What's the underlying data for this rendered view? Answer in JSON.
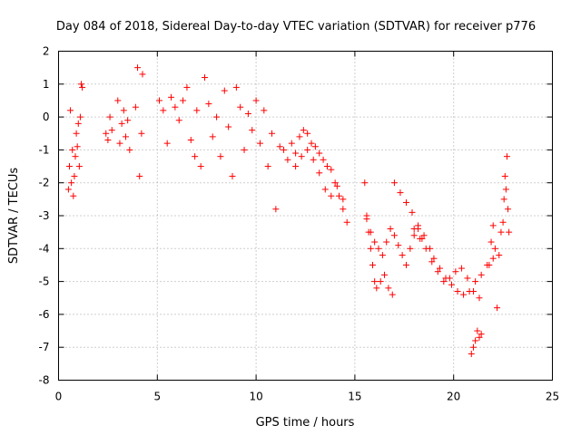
{
  "chart_data": {
    "type": "scatter",
    "title": "Day 084 of 2018, Sidereal Day-to-day VTEC variation (SDTVAR) for receiver p776",
    "xlabel": "GPS time / hours",
    "ylabel": "SDTVAR / TECUs",
    "xlim": [
      0,
      25
    ],
    "ylim": [
      -8,
      2
    ],
    "x_ticks": [
      0,
      5,
      10,
      15,
      20,
      25
    ],
    "x_tick_labels": [
      "0",
      "5",
      "10",
      "15",
      "20",
      "25"
    ],
    "y_ticks": [
      -8,
      -7,
      -6,
      -5,
      -4,
      -3,
      -2,
      -1,
      0,
      1,
      2
    ],
    "y_tick_labels": [
      "-8",
      "-7",
      "-6",
      "-5",
      "-4",
      "-3",
      "-2",
      "-1",
      "0",
      "1",
      "2"
    ],
    "grid": true,
    "marker": "+",
    "color": "#ff0000",
    "series": [
      {
        "name": "SDTVAR",
        "x": [
          0.5,
          0.55,
          0.6,
          0.65,
          0.7,
          0.75,
          0.8,
          0.85,
          0.9,
          0.95,
          1.0,
          1.05,
          1.1,
          1.15,
          1.2,
          2.4,
          2.5,
          2.6,
          2.7,
          3.0,
          3.1,
          3.2,
          3.3,
          3.4,
          3.5,
          3.6,
          3.9,
          4.0,
          4.1,
          4.2,
          4.25,
          5.1,
          5.3,
          5.5,
          5.7,
          5.9,
          6.1,
          6.3,
          6.5,
          6.7,
          6.9,
          7.0,
          7.2,
          7.4,
          7.6,
          7.8,
          8.0,
          8.2,
          8.4,
          8.6,
          8.8,
          9.0,
          9.2,
          9.4,
          9.6,
          9.8,
          10.0,
          10.2,
          10.4,
          10.6,
          10.8,
          11.0,
          11.2,
          11.4,
          11.6,
          11.8,
          12.0,
          12.2,
          12.4,
          12.6,
          12.8,
          13.0,
          13.2,
          13.4,
          13.6,
          13.8,
          14.0,
          14.2,
          14.4,
          14.6,
          12.0,
          12.3,
          12.6,
          12.9,
          13.2,
          13.5,
          13.8,
          14.1,
          14.4,
          15.5,
          15.6,
          15.7,
          15.8,
          15.9,
          16.0,
          16.1,
          16.3,
          16.5,
          16.7,
          16.9,
          15.6,
          15.8,
          16.0,
          16.2,
          16.4,
          16.6,
          16.8,
          17.0,
          17.2,
          17.4,
          17.6,
          17.8,
          18.0,
          18.2,
          18.4,
          17.0,
          17.3,
          17.6,
          17.9,
          18.2,
          18.5,
          18.8,
          18.0,
          18.3,
          18.6,
          18.9,
          19.2,
          19.5,
          19.8,
          20.1,
          20.4,
          20.7,
          21.0,
          21.3,
          19.0,
          19.3,
          19.6,
          19.9,
          20.2,
          20.5,
          20.8,
          21.1,
          21.4,
          21.7,
          22.0,
          20.9,
          21.0,
          21.1,
          21.2,
          21.3,
          21.4,
          21.8,
          21.9,
          22.0,
          22.1,
          22.2,
          22.3,
          22.4,
          22.5,
          22.55,
          22.6,
          22.65,
          22.7,
          22.75,
          22.8
        ],
        "y": [
          -2.2,
          -1.5,
          0.2,
          -2.0,
          -1.0,
          -2.4,
          -1.8,
          -1.2,
          -0.5,
          -0.9,
          -0.2,
          -1.5,
          0.0,
          1.0,
          0.9,
          -0.5,
          -0.7,
          0.0,
          -0.4,
          0.5,
          -0.8,
          -0.2,
          0.2,
          -0.6,
          -0.1,
          -1.0,
          0.3,
          1.5,
          -1.8,
          -0.5,
          1.3,
          0.5,
          0.2,
          -0.8,
          0.6,
          0.3,
          -0.1,
          0.5,
          0.9,
          -0.7,
          -1.2,
          0.2,
          -1.5,
          1.2,
          0.4,
          -0.6,
          0.0,
          -1.2,
          0.8,
          -0.3,
          -1.8,
          0.9,
          0.3,
          -1.0,
          0.1,
          -0.4,
          0.5,
          -0.8,
          0.2,
          -1.5,
          -0.5,
          -2.8,
          -0.9,
          -1.0,
          -1.3,
          -0.8,
          -1.1,
          -0.6,
          -0.4,
          -0.5,
          -0.8,
          -0.9,
          -1.1,
          -1.3,
          -1.5,
          -1.6,
          -2.0,
          -2.4,
          -2.8,
          -3.2,
          -1.5,
          -1.2,
          -1.0,
          -1.3,
          -1.7,
          -2.2,
          -2.4,
          -2.1,
          -2.5,
          -2.0,
          -3.0,
          -3.5,
          -4.0,
          -4.5,
          -5.0,
          -5.2,
          -5.0,
          -4.8,
          -5.2,
          -5.4,
          -3.1,
          -3.5,
          -3.8,
          -4.0,
          -4.2,
          -3.8,
          -3.4,
          -3.6,
          -3.9,
          -4.2,
          -4.5,
          -4.0,
          -3.6,
          -3.4,
          -3.7,
          -2.0,
          -2.3,
          -2.6,
          -2.9,
          -3.3,
          -3.6,
          -4.0,
          -3.4,
          -3.7,
          -4.0,
          -4.4,
          -4.7,
          -5.0,
          -4.9,
          -4.7,
          -4.6,
          -4.9,
          -5.3,
          -5.5,
          -4.3,
          -4.6,
          -4.9,
          -5.1,
          -5.3,
          -5.4,
          -5.3,
          -5.0,
          -4.8,
          -4.5,
          -4.3,
          -7.2,
          -7.0,
          -6.8,
          -6.5,
          -6.7,
          -6.6,
          -4.5,
          -3.8,
          -3.3,
          -4.0,
          -5.8,
          -4.2,
          -3.5,
          -3.2,
          -2.5,
          -1.8,
          -2.2,
          -1.2,
          -2.8,
          -3.5
        ]
      }
    ]
  }
}
